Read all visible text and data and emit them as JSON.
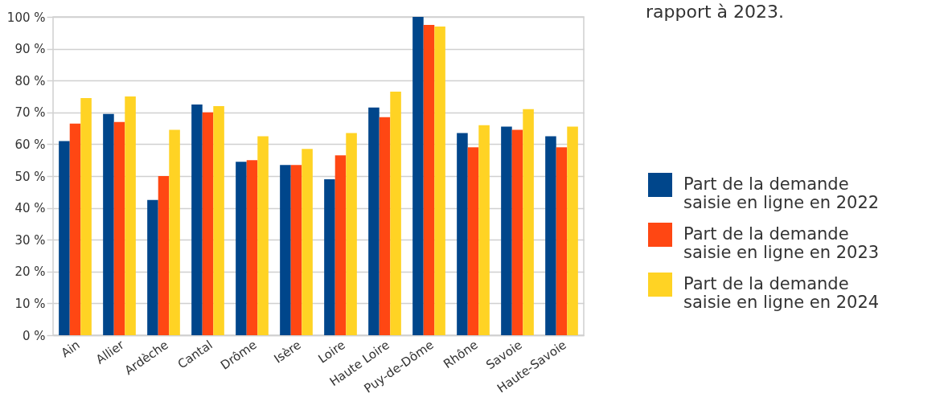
{
  "chart_data": {
    "type": "bar",
    "categories": [
      "Ain",
      "Allier",
      "Ardèche",
      "Cantal",
      "Drôme",
      "Isère",
      "Loire",
      "Haute Loire",
      "Puy-de-Dôme",
      "Rhône",
      "Savoie",
      "Haute-Savoie"
    ],
    "series": [
      {
        "name": "Part de la demande saisie en ligne en 2022",
        "color": "#00468b",
        "values": [
          61,
          69.5,
          42.5,
          72.5,
          54.5,
          53.5,
          49,
          71.5,
          100,
          63.5,
          65.5,
          62.5
        ]
      },
      {
        "name": "Part de la demande saisie en ligne en 2023",
        "color": "#ff4713",
        "values": [
          66.5,
          67,
          50,
          70,
          55,
          53.5,
          56.5,
          68.5,
          97.5,
          59,
          64.5,
          59
        ]
      },
      {
        "name": "Part de la demande saisie en ligne en 2024",
        "color": "#ffd324",
        "values": [
          74.5,
          75,
          64.5,
          72,
          62.5,
          58.5,
          63.5,
          76.5,
          97,
          66,
          71,
          65.5
        ]
      }
    ],
    "ylim": [
      0,
      100
    ],
    "yticks": [
      {
        "value": 0,
        "label": "0 %"
      },
      {
        "value": 10,
        "label": "10 %"
      },
      {
        "value": 20,
        "label": "20 %"
      },
      {
        "value": 30,
        "label": "30 %"
      },
      {
        "value": 40,
        "label": "40 %"
      },
      {
        "value": 50,
        "label": "50 %"
      },
      {
        "value": 60,
        "label": "60 %"
      },
      {
        "value": 70,
        "label": "70 %"
      },
      {
        "value": 80,
        "label": "80 %"
      },
      {
        "value": 90,
        "label": "90 %"
      },
      {
        "value": 100,
        "label": "100 %"
      }
    ],
    "grid": "y",
    "legend": "right",
    "annotations": [
      "rapport à 2023."
    ]
  }
}
